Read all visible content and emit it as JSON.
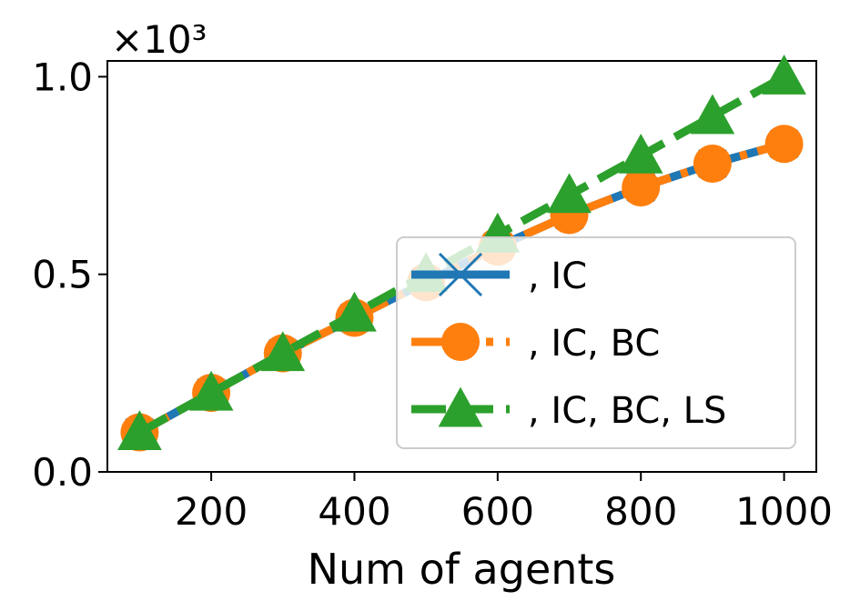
{
  "chart_data": {
    "type": "line",
    "title": "",
    "xlabel": "Num of agents",
    "ylabel": "",
    "y_multiplier_label": "×10³",
    "xlim": [
      55,
      1045
    ],
    "ylim": [
      0,
      1.04
    ],
    "xticks": [
      200,
      400,
      600,
      800,
      1000
    ],
    "xtick_labels": [
      "200",
      "400",
      "600",
      "800",
      "1000"
    ],
    "yticks": [
      0.0,
      0.5,
      1.0
    ],
    "ytick_labels": [
      "0.0",
      "0.5",
      "1.0"
    ],
    "grid": false,
    "legend_position": "lower-right",
    "x": [
      100,
      200,
      300,
      400,
      500,
      600,
      700,
      800,
      900,
      1000
    ],
    "series": [
      {
        "name": ", IC",
        "color": "#1f77b4",
        "marker": "x",
        "linestyle": "solid",
        "values": [
          0.1,
          0.2,
          0.3,
          0.39,
          0.48,
          0.57,
          0.65,
          0.72,
          0.78,
          0.83
        ]
      },
      {
        "name": ", IC, BC",
        "color": "#ff7f0e",
        "marker": "circle",
        "linestyle": "dashdot",
        "values": [
          0.1,
          0.2,
          0.3,
          0.39,
          0.48,
          0.57,
          0.65,
          0.72,
          0.78,
          0.83
        ]
      },
      {
        "name": ", IC, BC, LS",
        "color": "#2ca02c",
        "marker": "triangle",
        "linestyle": "dashed",
        "values": [
          0.1,
          0.2,
          0.3,
          0.4,
          0.5,
          0.6,
          0.7,
          0.8,
          0.9,
          1.0
        ]
      }
    ]
  }
}
